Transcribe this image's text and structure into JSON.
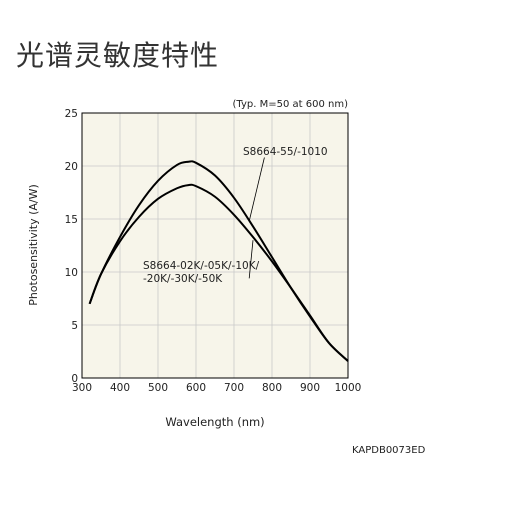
{
  "page": {
    "title": "光谱灵敏度特性",
    "doc_code": "KAPDB0073ED"
  },
  "chart_data": {
    "type": "line",
    "title": "",
    "subtitle": "(Typ. M=50 at 600 nm)",
    "xlabel": "Wavelength (nm)",
    "ylabel": "Photosensitivity (A/W)",
    "xlim": [
      300,
      1000
    ],
    "ylim": [
      0,
      25
    ],
    "x_ticks": [
      300,
      400,
      500,
      600,
      700,
      800,
      900,
      1000
    ],
    "y_ticks": [
      0,
      5,
      10,
      15,
      20,
      25
    ],
    "grid": true,
    "background": "#f7f5ea",
    "line_color": "#000000",
    "series": [
      {
        "name": "S8664-55/-1010",
        "x": [
          320,
          350,
          400,
          450,
          500,
          550,
          580,
          600,
          650,
          700,
          750,
          800,
          850,
          900,
          950,
          1000
        ],
        "y": [
          7.0,
          9.8,
          13.3,
          16.3,
          18.6,
          20.1,
          20.4,
          20.3,
          19.1,
          17.0,
          14.3,
          11.4,
          8.5,
          5.8,
          3.3,
          1.6
        ]
      },
      {
        "name": "S8664-02K/-05K/-10K/-20K/-30K/-50K",
        "x": [
          320,
          350,
          400,
          450,
          500,
          550,
          580,
          600,
          650,
          700,
          750,
          800,
          850,
          900,
          950,
          1000
        ],
        "y": [
          7.0,
          9.8,
          12.9,
          15.2,
          16.9,
          17.9,
          18.2,
          18.1,
          17.1,
          15.4,
          13.3,
          11.0,
          8.5,
          5.9,
          3.3,
          1.6
        ]
      }
    ],
    "annotations": [
      {
        "text_lines": [
          "S8664-55/-1010"
        ],
        "series_index": 0
      },
      {
        "text_lines": [
          "S8664-02K/-05K/-10K/",
          "-20K/-30K/-50K"
        ],
        "series_index": 1
      }
    ]
  }
}
